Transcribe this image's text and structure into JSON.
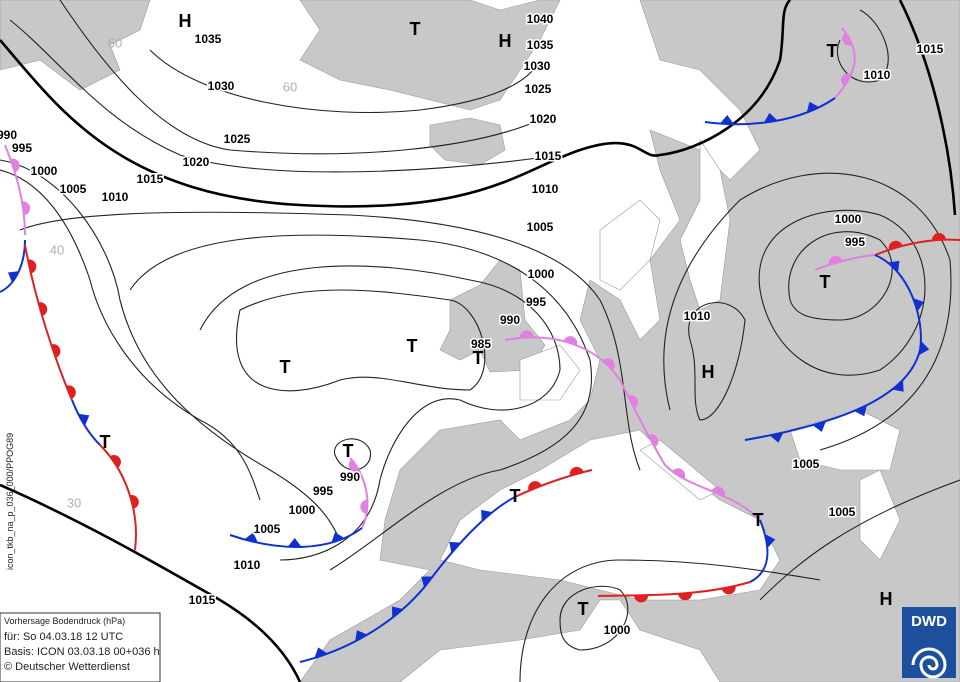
{
  "pressure_labels": [
    "H",
    "1035",
    "T",
    "H",
    "1040",
    "1035",
    "1030",
    "1025",
    "1020",
    "1015",
    "1010",
    "1005",
    "1000",
    "995",
    "990",
    "985",
    "1030",
    "1025",
    "1020",
    "1015",
    "1010",
    "1005",
    "1000",
    "995",
    "990",
    "T",
    "T",
    "T",
    "T",
    "990",
    "995",
    "1000",
    "1005",
    "1010",
    "1015",
    "T",
    "T",
    "T",
    "T",
    "1000",
    "T",
    "1010",
    "1015",
    "1000",
    "995",
    "T",
    "1010",
    "H",
    "1005",
    "1005",
    "H"
  ],
  "latitude_labels": [
    "60",
    "60",
    "40",
    "30"
  ],
  "info_box": {
    "title": "Vorhersage Bodendruck (hPa)",
    "valid": "für:  So 04.03.18  12 UTC",
    "basis": "Basis: ICON  03.03.18 00+036 h",
    "copyright": "© Deutscher Wetterdienst"
  },
  "side_label": "icon_tkb_na_p_036_000/PPOG89",
  "logo": "DWD"
}
